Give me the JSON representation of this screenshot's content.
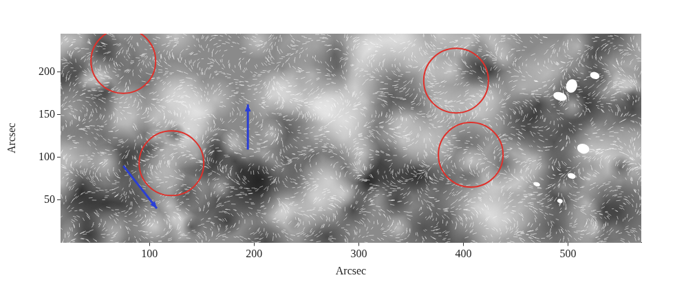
{
  "chart_data": {
    "type": "scatter",
    "x_label": "Arcsec",
    "y_label": "Arcsec",
    "xlim": [
      15,
      570
    ],
    "xticks": [
      100,
      200,
      300,
      400,
      500
    ],
    "ylim": [
      0,
      245
    ],
    "yticks": [
      50,
      100,
      150,
      200
    ],
    "grid": false,
    "series": [
      {
        "type": "scatter",
        "marker": "circle",
        "color": "#e0302a",
        "x": [
          75,
          121,
          393,
          407
        ],
        "values": [
          213,
          93,
          190,
          103
        ]
      },
      {
        "type": "arrow",
        "color": "#2a3fd6",
        "x": [
          75,
          107
        ],
        "values": [
          90,
          40
        ]
      },
      {
        "type": "arrow",
        "color": "#2a3fd6",
        "x": [
          194,
          194
        ],
        "values": [
          109,
          162
        ]
      }
    ]
  }
}
